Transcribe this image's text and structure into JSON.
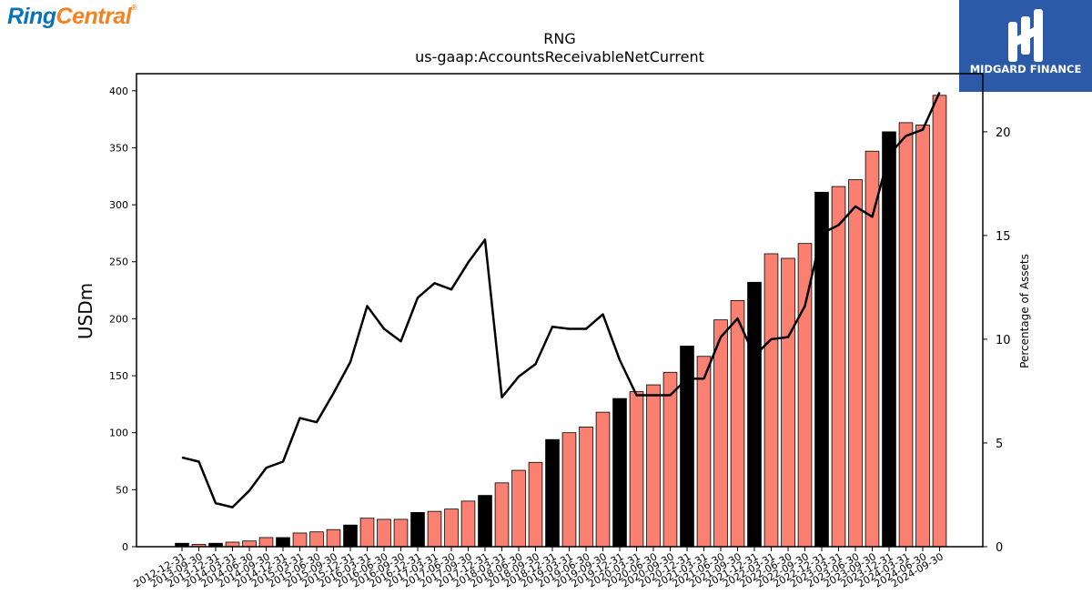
{
  "brand": {
    "logo_part1": "Ring",
    "logo_part2": "Central",
    "badge_name": "MIDGARD FINANCE"
  },
  "colors": {
    "highlight_bar": "#000000",
    "regular_bar": "#fa8072",
    "line": "#000000",
    "badge_bg": "#2c5aa8"
  },
  "chart_data": {
    "type": "bar",
    "title": "RNG",
    "subtitle": "us-gaap:AccountsReceivableNetCurrent",
    "ylabel": "USDm",
    "y2label": "Percentage of Assets",
    "ylim": [
      0,
      415
    ],
    "y2lim": [
      0,
      22.8
    ],
    "yticks": [
      0,
      50,
      100,
      150,
      200,
      250,
      300,
      350,
      400
    ],
    "y2ticks": [
      0,
      5,
      10,
      15,
      20
    ],
    "grid": false,
    "categories": [
      "2012-12-31",
      "2013-09-30",
      "2013-12-31",
      "2014-03-31",
      "2014-06-30",
      "2014-09-30",
      "2014-12-31",
      "2015-03-31",
      "2015-06-30",
      "2015-09-30",
      "2015-12-31",
      "2016-03-31",
      "2016-06-30",
      "2016-09-30",
      "2016-12-31",
      "2017-03-31",
      "2017-06-30",
      "2017-09-30",
      "2017-12-31",
      "2018-03-31",
      "2018-06-30",
      "2018-09-30",
      "2018-12-31",
      "2019-03-31",
      "2019-06-30",
      "2019-09-30",
      "2019-12-31",
      "2020-03-31",
      "2020-06-30",
      "2020-09-30",
      "2020-12-31",
      "2021-03-31",
      "2021-06-30",
      "2021-09-30",
      "2021-12-31",
      "2022-03-31",
      "2022-06-30",
      "2022-09-30",
      "2022-12-31",
      "2023-03-31",
      "2023-06-30",
      "2023-09-30",
      "2023-12-31",
      "2024-03-31",
      "2024-06-30",
      "2024-09-30"
    ],
    "series": [
      {
        "type": "bar",
        "axis": "left",
        "values": [
          3,
          2,
          3,
          4,
          5,
          8,
          8,
          12,
          13,
          15,
          19,
          25,
          24,
          24,
          30,
          31,
          33,
          40,
          45,
          56,
          67,
          74,
          94,
          100,
          105,
          118,
          130,
          136,
          142,
          153,
          176,
          167,
          199,
          216,
          232,
          257,
          253,
          266,
          311,
          316,
          322,
          347,
          364,
          372,
          370,
          396
        ],
        "highlight": [
          true,
          false,
          true,
          false,
          false,
          false,
          true,
          false,
          false,
          false,
          true,
          false,
          false,
          false,
          true,
          false,
          false,
          false,
          true,
          false,
          false,
          false,
          true,
          false,
          false,
          false,
          true,
          false,
          false,
          false,
          true,
          false,
          false,
          false,
          true,
          false,
          false,
          false,
          true,
          false,
          false,
          false,
          true,
          false,
          false,
          false
        ]
      },
      {
        "type": "line",
        "axis": "right",
        "values": [
          4.3,
          4.1,
          2.1,
          1.9,
          2.7,
          3.8,
          4.1,
          6.2,
          6.0,
          7.4,
          8.9,
          11.6,
          10.5,
          9.9,
          12.0,
          12.7,
          12.4,
          13.7,
          14.8,
          7.2,
          8.2,
          8.8,
          10.6,
          10.5,
          10.5,
          11.2,
          9.0,
          7.3,
          7.3,
          7.3,
          8.1,
          8.1,
          10.1,
          11.0,
          9.2,
          10.0,
          10.1,
          11.6,
          15.1,
          15.5,
          16.4,
          15.9,
          18.9,
          19.8,
          20.1,
          21.9
        ]
      }
    ]
  }
}
